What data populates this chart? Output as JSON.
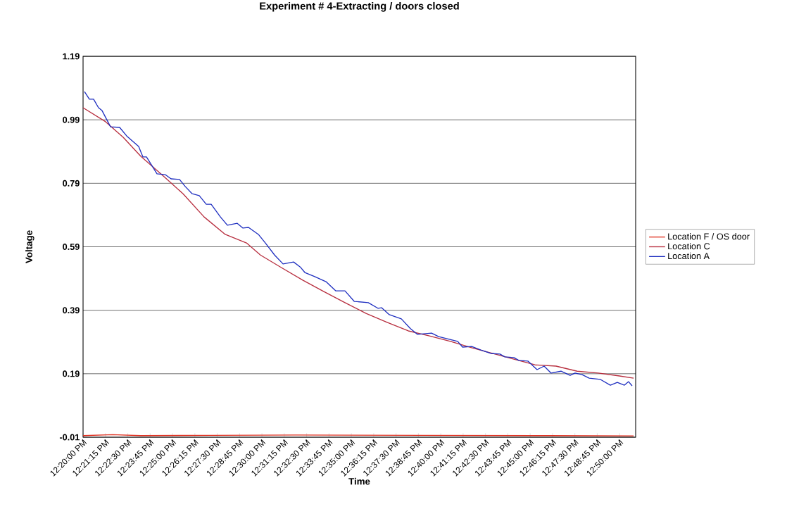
{
  "chart_data": {
    "type": "line",
    "title": "Experiment # 4-Extracting / doors closed",
    "xlabel": "Time",
    "ylabel": "Voltage",
    "xlim": [
      12.3333,
      12.8483
    ],
    "ylim": [
      -0.01,
      1.19
    ],
    "xticks": [
      {
        "value": 12.33333,
        "label": "12:20:00 PM"
      },
      {
        "value": 12.35417,
        "label": "12:21:15 PM"
      },
      {
        "value": 12.375,
        "label": "12:22:30 PM"
      },
      {
        "value": 12.39583,
        "label": "12:23:45 PM"
      },
      {
        "value": 12.41667,
        "label": "12:25:00 PM"
      },
      {
        "value": 12.4375,
        "label": "12:26:15 PM"
      },
      {
        "value": 12.45833,
        "label": "12:27:30 PM"
      },
      {
        "value": 12.47917,
        "label": "12:28:45 PM"
      },
      {
        "value": 12.5,
        "label": "12:30:00 PM"
      },
      {
        "value": 12.52083,
        "label": "12:31:15 PM"
      },
      {
        "value": 12.54167,
        "label": "12:32:30 PM"
      },
      {
        "value": 12.5625,
        "label": "12:33:45 PM"
      },
      {
        "value": 12.58333,
        "label": "12:35:00 PM"
      },
      {
        "value": 12.60417,
        "label": "12:36:15 PM"
      },
      {
        "value": 12.625,
        "label": "12:37:30 PM"
      },
      {
        "value": 12.64583,
        "label": "12:38:45 PM"
      },
      {
        "value": 12.66667,
        "label": "12:40:00 PM"
      },
      {
        "value": 12.6875,
        "label": "12:41:15 PM"
      },
      {
        "value": 12.70833,
        "label": "12:42:30 PM"
      },
      {
        "value": 12.72917,
        "label": "12:43:45 PM"
      },
      {
        "value": 12.75,
        "label": "12:45:00 PM"
      },
      {
        "value": 12.77083,
        "label": "12:46:15 PM"
      },
      {
        "value": 12.79167,
        "label": "12:47:30 PM"
      },
      {
        "value": 12.8125,
        "label": "12:48:45 PM"
      },
      {
        "value": 12.83333,
        "label": "12:50:00 PM"
      }
    ],
    "yticks": [
      -0.01,
      0.19,
      0.39,
      0.59,
      0.79,
      0.99,
      1.19
    ],
    "grid": "y",
    "legend": "right",
    "series": [
      {
        "name": "Location F / OS door",
        "color": "#e03020",
        "x": [
          12.3333,
          12.3609,
          12.3871,
          12.4527,
          12.5315,
          12.6495,
          12.7676,
          12.8464
        ],
        "values": [
          -0.005,
          -0.002,
          -0.005,
          -0.004,
          -0.003,
          -0.004,
          -0.005,
          -0.006
        ]
      },
      {
        "name": "Location C",
        "color": "#b83040",
        "x": [
          12.3333,
          12.3543,
          12.3707,
          12.3871,
          12.4068,
          12.4265,
          12.4461,
          12.4658,
          12.4856,
          12.4986,
          12.5183,
          12.538,
          12.5577,
          12.5774,
          12.597,
          12.6167,
          12.6364,
          12.6561,
          12.6757,
          12.6954,
          12.7151,
          12.7348,
          12.7545,
          12.7741,
          12.7938,
          12.8135,
          12.8332,
          12.8464
        ],
        "values": [
          1.028,
          0.984,
          0.935,
          0.875,
          0.817,
          0.757,
          0.684,
          0.629,
          0.602,
          0.564,
          0.524,
          0.485,
          0.449,
          0.414,
          0.38,
          0.352,
          0.325,
          0.309,
          0.292,
          0.272,
          0.254,
          0.236,
          0.218,
          0.214,
          0.198,
          0.192,
          0.183,
          0.176
        ]
      },
      {
        "name": "Location A",
        "color": "#2030c0",
        "x": [
          12.3346,
          12.3392,
          12.3431,
          12.3477,
          12.351,
          12.3589,
          12.3674,
          12.374,
          12.3851,
          12.3891,
          12.3924,
          12.4022,
          12.4101,
          12.4153,
          12.4232,
          12.4285,
          12.435,
          12.4416,
          12.4481,
          12.4527,
          12.4613,
          12.4678,
          12.477,
          12.4823,
          12.4875,
          12.4967,
          12.5032,
          12.5118,
          12.5197,
          12.5295,
          12.5361,
          12.54,
          12.5492,
          12.5597,
          12.5689,
          12.5774,
          12.586,
          12.5991,
          12.6083,
          12.6115,
          12.6187,
          12.6299,
          12.6384,
          12.645,
          12.6581,
          12.6647,
          12.6824,
          12.687,
          12.6955,
          12.704,
          12.7132,
          12.7218,
          12.7264,
          12.7348,
          12.7394,
          12.7478,
          12.7564,
          12.763,
          12.7695,
          12.7787,
          12.7872,
          12.7918,
          12.7984,
          12.805,
          12.8155,
          12.8247,
          12.8312,
          12.8378,
          12.8417,
          12.845
        ],
        "values": [
          1.079,
          1.055,
          1.055,
          1.028,
          1.019,
          0.968,
          0.966,
          0.939,
          0.906,
          0.873,
          0.873,
          0.82,
          0.817,
          0.804,
          0.802,
          0.78,
          0.757,
          0.751,
          0.724,
          0.724,
          0.684,
          0.658,
          0.664,
          0.649,
          0.651,
          0.629,
          0.602,
          0.564,
          0.536,
          0.542,
          0.525,
          0.509,
          0.496,
          0.48,
          0.451,
          0.451,
          0.418,
          0.414,
          0.396,
          0.398,
          0.376,
          0.363,
          0.332,
          0.314,
          0.318,
          0.307,
          0.292,
          0.274,
          0.276,
          0.265,
          0.254,
          0.252,
          0.243,
          0.241,
          0.232,
          0.23,
          0.203,
          0.214,
          0.192,
          0.198,
          0.185,
          0.192,
          0.187,
          0.176,
          0.172,
          0.154,
          0.163,
          0.154,
          0.165,
          0.152
        ]
      }
    ]
  }
}
